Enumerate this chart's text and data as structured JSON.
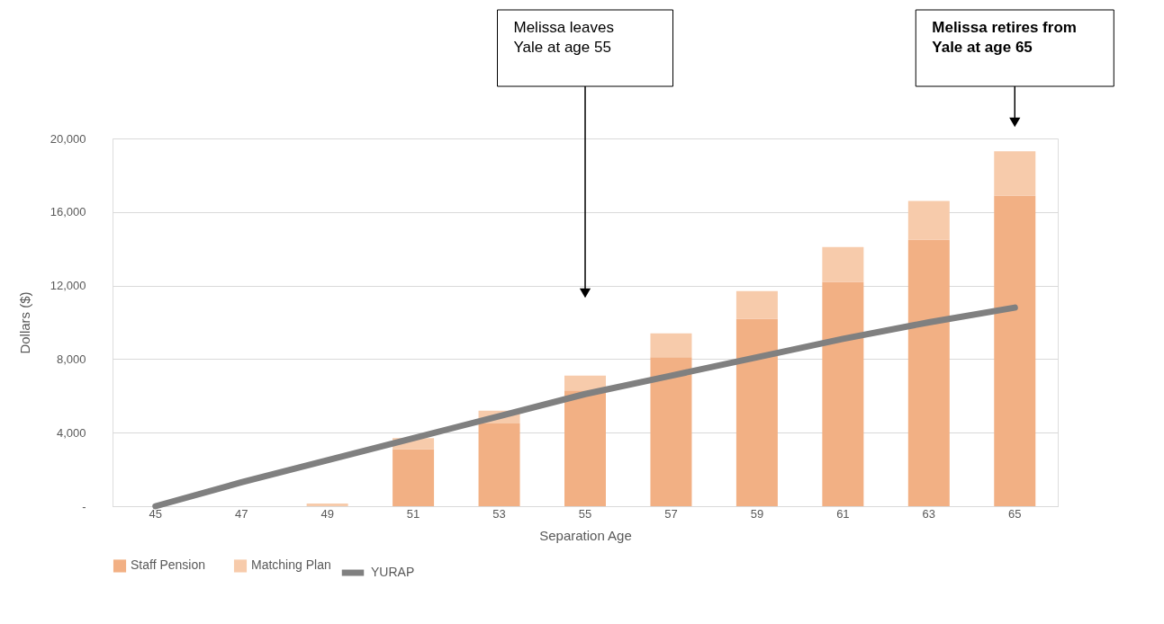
{
  "chart_data": {
    "type": "bar",
    "stacked": true,
    "xlabel": "Separation Age",
    "ylabel": "Dollars ($)",
    "categories": [
      "45",
      "47",
      "49",
      "51",
      "53",
      "55",
      "57",
      "59",
      "61",
      "63",
      "65"
    ],
    "series": [
      {
        "name": "Staff Pension",
        "color": "#f2b084",
        "values": [
          0,
          0,
          0,
          3100,
          4500,
          6300,
          8100,
          10200,
          12200,
          14500,
          16900
        ]
      },
      {
        "name": "Matching Plan",
        "color": "#f7cbab",
        "values": [
          0,
          0,
          150,
          600,
          700,
          800,
          1300,
          1500,
          1900,
          2100,
          2400
        ]
      },
      {
        "name": "YURAP",
        "type": "line",
        "line_style": "solid",
        "color": "#808080",
        "values": [
          0,
          1300,
          2500,
          3700,
          4900,
          6100,
          7100,
          8100,
          9100,
          10000,
          10800
        ]
      }
    ],
    "ylim": [
      0,
      20000
    ],
    "yticks": [
      {
        "value": 0,
        "label": "-"
      },
      {
        "value": 4000,
        "label": "4,000"
      },
      {
        "value": 8000,
        "label": "8,000"
      },
      {
        "value": 12000,
        "label": "12,000"
      },
      {
        "value": 16000,
        "label": "16,000"
      },
      {
        "value": 20000,
        "label": "20,000"
      }
    ],
    "grid": "y",
    "legend": "bottom",
    "annotations": [
      "Melissa leaves\nYale at age 55",
      "Melissa retires from\nYale at age 65"
    ]
  }
}
